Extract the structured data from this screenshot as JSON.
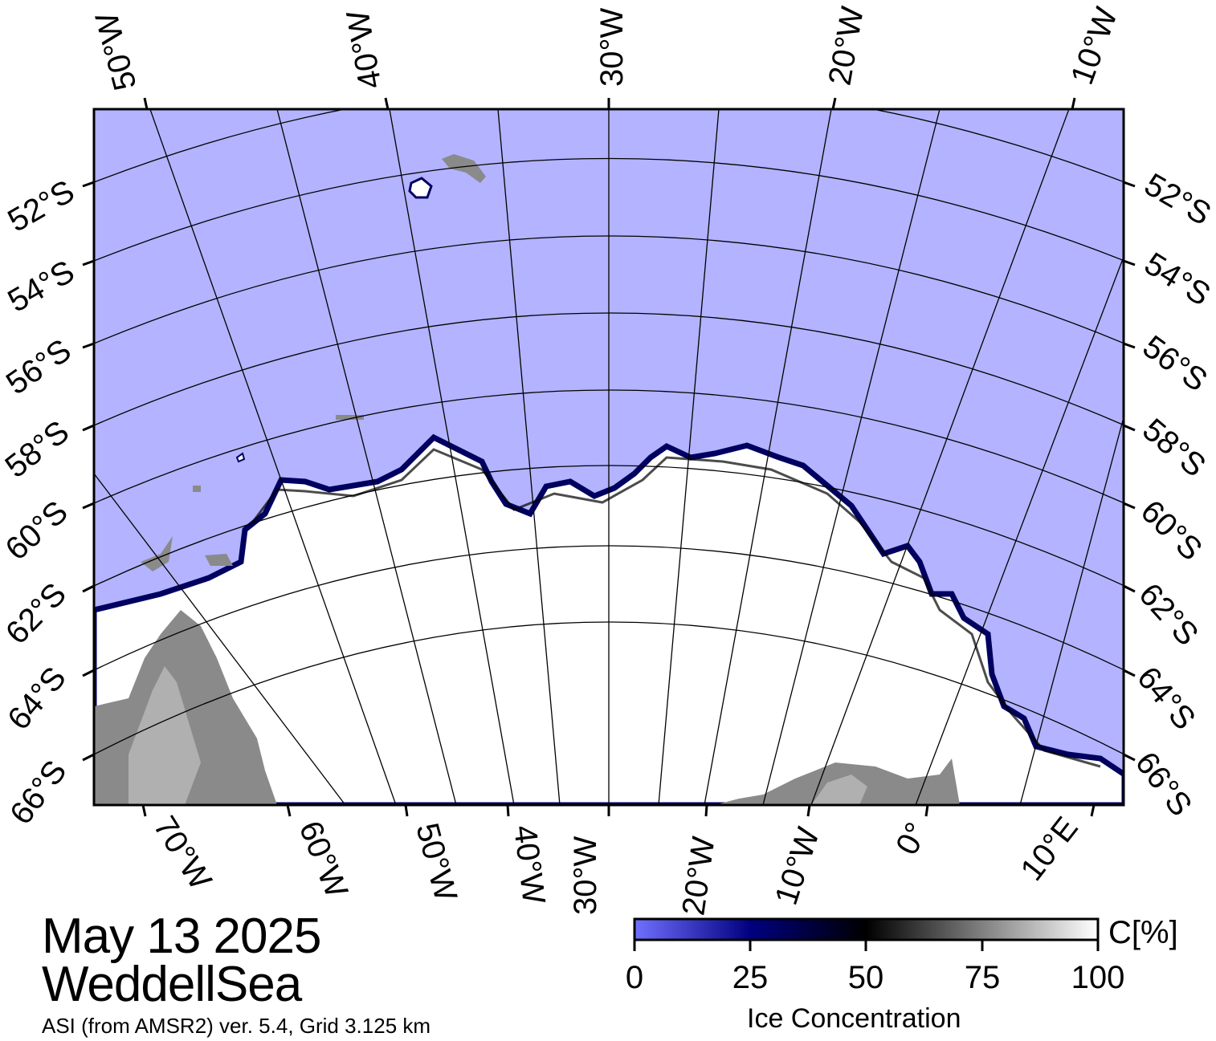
{
  "map": {
    "date": "May 13 2025",
    "region": "WeddellSea",
    "source": "ASI (from AMSR2) ver. 5.4,  Grid 3.125 km",
    "colors": {
      "open_water": "#b3b3ff",
      "ice_high": "#ffffff",
      "ice_mid": "#000000",
      "ice_low": "#000080",
      "land": "#8a8a8a",
      "land_light": "#b0b0b0"
    },
    "top_lon_labels": [
      "50°W",
      "40°W",
      "30°W",
      "20°W",
      "10°W"
    ],
    "bottom_lon_labels": [
      "70°W",
      "60°W",
      "50°W",
      "40°W",
      "30°W",
      "20°W",
      "10°W",
      "0°",
      "10°E"
    ],
    "left_lat_labels": [
      "52°S",
      "54°S",
      "56°S",
      "58°S",
      "60°S",
      "62°S",
      "64°S",
      "66°S"
    ],
    "right_lat_labels": [
      "52°S",
      "54°S",
      "56°S",
      "58°S",
      "60°S",
      "62°S",
      "64°S",
      "66°S"
    ]
  },
  "colorbar": {
    "title": "Ice Concentration",
    "unit": "C[%]",
    "ticks": [
      "0",
      "25",
      "50",
      "75",
      "100"
    ],
    "stops": [
      "#7070ff",
      "#000080",
      "#000000",
      "#808080",
      "#ffffff"
    ]
  }
}
